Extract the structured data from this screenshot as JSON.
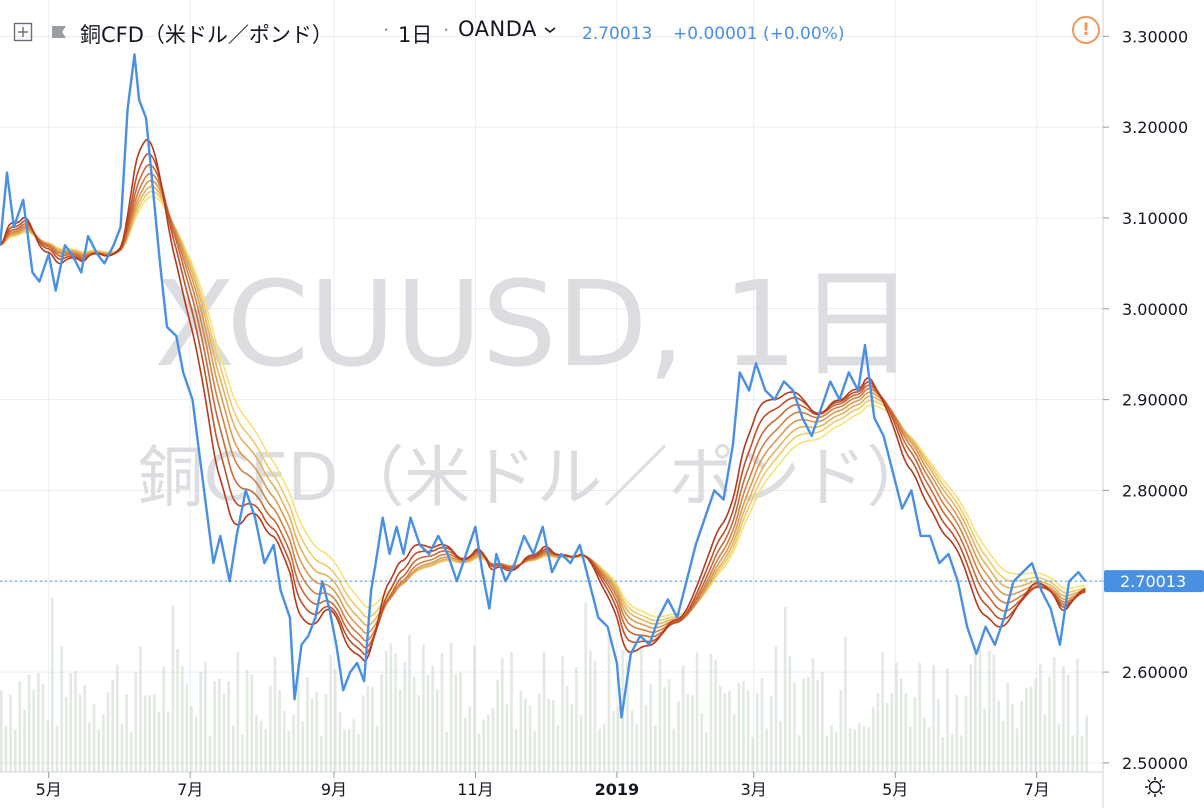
{
  "header": {
    "title": "銅CFD（米ドル／ポンド）",
    "separator": "·",
    "interval": "1日",
    "broker": "OANDA",
    "last_price": "2.70013",
    "change": "+0.00001 (+0.00%)"
  },
  "watermark": {
    "symbol": "XCUUSD, 1日",
    "description": "銅CFD（米ドル／ポンド）"
  },
  "colors": {
    "price_line": "#4a90e2",
    "ribbon_fast": "#f7e27a",
    "ribbon_slow": "#b5391d",
    "grid": "#e9ecf0",
    "volume": "#c8d7c6",
    "last_price_label_bg": "#4a90e2",
    "watermark": "#dcdde0",
    "warning": "#f0965a"
  },
  "chart_data": {
    "type": "line",
    "ylim": [
      2.49,
      3.34
    ],
    "y_ticks": [
      "3.30000",
      "3.20000",
      "3.10000",
      "3.00000",
      "2.90000",
      "2.80000",
      "2.70000",
      "2.60000",
      "2.50000"
    ],
    "y_tick_values": [
      3.3,
      3.2,
      3.1,
      3.0,
      2.9,
      2.8,
      2.7,
      2.6,
      2.5
    ],
    "x_ticks": [
      "5月",
      "7月",
      "9月",
      "11月",
      "2019",
      "3月",
      "5月",
      "7月"
    ],
    "x_tick_dates": [
      "2018-05-01",
      "2018-07-01",
      "2018-09-01",
      "2018-11-01",
      "2019-01-01",
      "2019-03-01",
      "2019-05-01",
      "2019-07-01"
    ],
    "x_range": [
      "2018-04-10",
      "2019-07-24"
    ],
    "last_price": 2.70013,
    "last_price_label": "2.70013",
    "series": [
      {
        "values": [
          [
            "2018-04-10",
            3.07
          ],
          [
            "2018-04-13",
            3.15
          ],
          [
            "2018-04-16",
            3.09
          ],
          [
            "2018-04-20",
            3.12
          ],
          [
            "2018-04-24",
            3.04
          ],
          [
            "2018-04-27",
            3.03
          ],
          [
            "2018-05-01",
            3.06
          ],
          [
            "2018-05-04",
            3.02
          ],
          [
            "2018-05-08",
            3.07
          ],
          [
            "2018-05-11",
            3.06
          ],
          [
            "2018-05-15",
            3.04
          ],
          [
            "2018-05-18",
            3.08
          ],
          [
            "2018-05-22",
            3.06
          ],
          [
            "2018-05-25",
            3.05
          ],
          [
            "2018-05-29",
            3.07
          ],
          [
            "2018-06-01",
            3.09
          ],
          [
            "2018-06-04",
            3.22
          ],
          [
            "2018-06-07",
            3.28
          ],
          [
            "2018-06-09",
            3.23
          ],
          [
            "2018-06-12",
            3.21
          ],
          [
            "2018-06-15",
            3.13
          ],
          [
            "2018-06-18",
            3.05
          ],
          [
            "2018-06-21",
            2.98
          ],
          [
            "2018-06-25",
            2.97
          ],
          [
            "2018-06-28",
            2.93
          ],
          [
            "2018-07-02",
            2.9
          ],
          [
            "2018-07-05",
            2.84
          ],
          [
            "2018-07-08",
            2.78
          ],
          [
            "2018-07-11",
            2.72
          ],
          [
            "2018-07-14",
            2.75
          ],
          [
            "2018-07-18",
            2.7
          ],
          [
            "2018-07-21",
            2.75
          ],
          [
            "2018-07-25",
            2.8
          ],
          [
            "2018-07-29",
            2.77
          ],
          [
            "2018-08-02",
            2.72
          ],
          [
            "2018-08-06",
            2.74
          ],
          [
            "2018-08-09",
            2.69
          ],
          [
            "2018-08-13",
            2.66
          ],
          [
            "2018-08-15",
            2.57
          ],
          [
            "2018-08-18",
            2.63
          ],
          [
            "2018-08-21",
            2.64
          ],
          [
            "2018-08-24",
            2.66
          ],
          [
            "2018-08-27",
            2.7
          ],
          [
            "2018-08-30",
            2.67
          ],
          [
            "2018-09-02",
            2.63
          ],
          [
            "2018-09-05",
            2.58
          ],
          [
            "2018-09-08",
            2.6
          ],
          [
            "2018-09-11",
            2.61
          ],
          [
            "2018-09-14",
            2.59
          ],
          [
            "2018-09-17",
            2.69
          ],
          [
            "2018-09-19",
            2.72
          ],
          [
            "2018-09-22",
            2.77
          ],
          [
            "2018-09-25",
            2.73
          ],
          [
            "2018-09-28",
            2.76
          ],
          [
            "2018-10-01",
            2.73
          ],
          [
            "2018-10-04",
            2.77
          ],
          [
            "2018-10-08",
            2.74
          ],
          [
            "2018-10-12",
            2.73
          ],
          [
            "2018-10-16",
            2.75
          ],
          [
            "2018-10-20",
            2.73
          ],
          [
            "2018-10-24",
            2.7
          ],
          [
            "2018-10-28",
            2.73
          ],
          [
            "2018-11-01",
            2.76
          ],
          [
            "2018-11-04",
            2.71
          ],
          [
            "2018-11-07",
            2.67
          ],
          [
            "2018-11-10",
            2.73
          ],
          [
            "2018-11-14",
            2.7
          ],
          [
            "2018-11-18",
            2.72
          ],
          [
            "2018-11-22",
            2.75
          ],
          [
            "2018-11-26",
            2.73
          ],
          [
            "2018-11-30",
            2.76
          ],
          [
            "2018-12-04",
            2.71
          ],
          [
            "2018-12-08",
            2.73
          ],
          [
            "2018-12-12",
            2.72
          ],
          [
            "2018-12-16",
            2.74
          ],
          [
            "2018-12-20",
            2.7
          ],
          [
            "2018-12-24",
            2.66
          ],
          [
            "2018-12-28",
            2.65
          ],
          [
            "2019-01-01",
            2.61
          ],
          [
            "2019-01-03",
            2.55
          ],
          [
            "2019-01-07",
            2.62
          ],
          [
            "2019-01-11",
            2.64
          ],
          [
            "2019-01-15",
            2.63
          ],
          [
            "2019-01-19",
            2.66
          ],
          [
            "2019-01-23",
            2.68
          ],
          [
            "2019-01-27",
            2.66
          ],
          [
            "2019-01-31",
            2.7
          ],
          [
            "2019-02-04",
            2.74
          ],
          [
            "2019-02-08",
            2.77
          ],
          [
            "2019-02-12",
            2.8
          ],
          [
            "2019-02-16",
            2.79
          ],
          [
            "2019-02-20",
            2.85
          ],
          [
            "2019-02-23",
            2.93
          ],
          [
            "2019-02-27",
            2.91
          ],
          [
            "2019-03-02",
            2.94
          ],
          [
            "2019-03-06",
            2.91
          ],
          [
            "2019-03-10",
            2.9
          ],
          [
            "2019-03-14",
            2.92
          ],
          [
            "2019-03-18",
            2.91
          ],
          [
            "2019-03-22",
            2.88
          ],
          [
            "2019-03-26",
            2.86
          ],
          [
            "2019-03-30",
            2.89
          ],
          [
            "2019-04-03",
            2.92
          ],
          [
            "2019-04-07",
            2.9
          ],
          [
            "2019-04-11",
            2.93
          ],
          [
            "2019-04-15",
            2.91
          ],
          [
            "2019-04-18",
            2.96
          ],
          [
            "2019-04-22",
            2.88
          ],
          [
            "2019-04-26",
            2.86
          ],
          [
            "2019-04-30",
            2.82
          ],
          [
            "2019-05-04",
            2.78
          ],
          [
            "2019-05-08",
            2.8
          ],
          [
            "2019-05-12",
            2.75
          ],
          [
            "2019-05-16",
            2.75
          ],
          [
            "2019-05-20",
            2.72
          ],
          [
            "2019-05-24",
            2.73
          ],
          [
            "2019-05-28",
            2.7
          ],
          [
            "2019-06-01",
            2.65
          ],
          [
            "2019-06-05",
            2.62
          ],
          [
            "2019-06-09",
            2.65
          ],
          [
            "2019-06-13",
            2.63
          ],
          [
            "2019-06-17",
            2.66
          ],
          [
            "2019-06-21",
            2.7
          ],
          [
            "2019-06-25",
            2.71
          ],
          [
            "2019-06-29",
            2.72
          ],
          [
            "2019-07-03",
            2.69
          ],
          [
            "2019-07-07",
            2.67
          ],
          [
            "2019-07-11",
            2.63
          ],
          [
            "2019-07-15",
            2.7
          ],
          [
            "2019-07-19",
            2.71
          ],
          [
            "2019-07-22",
            2.7
          ]
        ]
      }
    ]
  }
}
